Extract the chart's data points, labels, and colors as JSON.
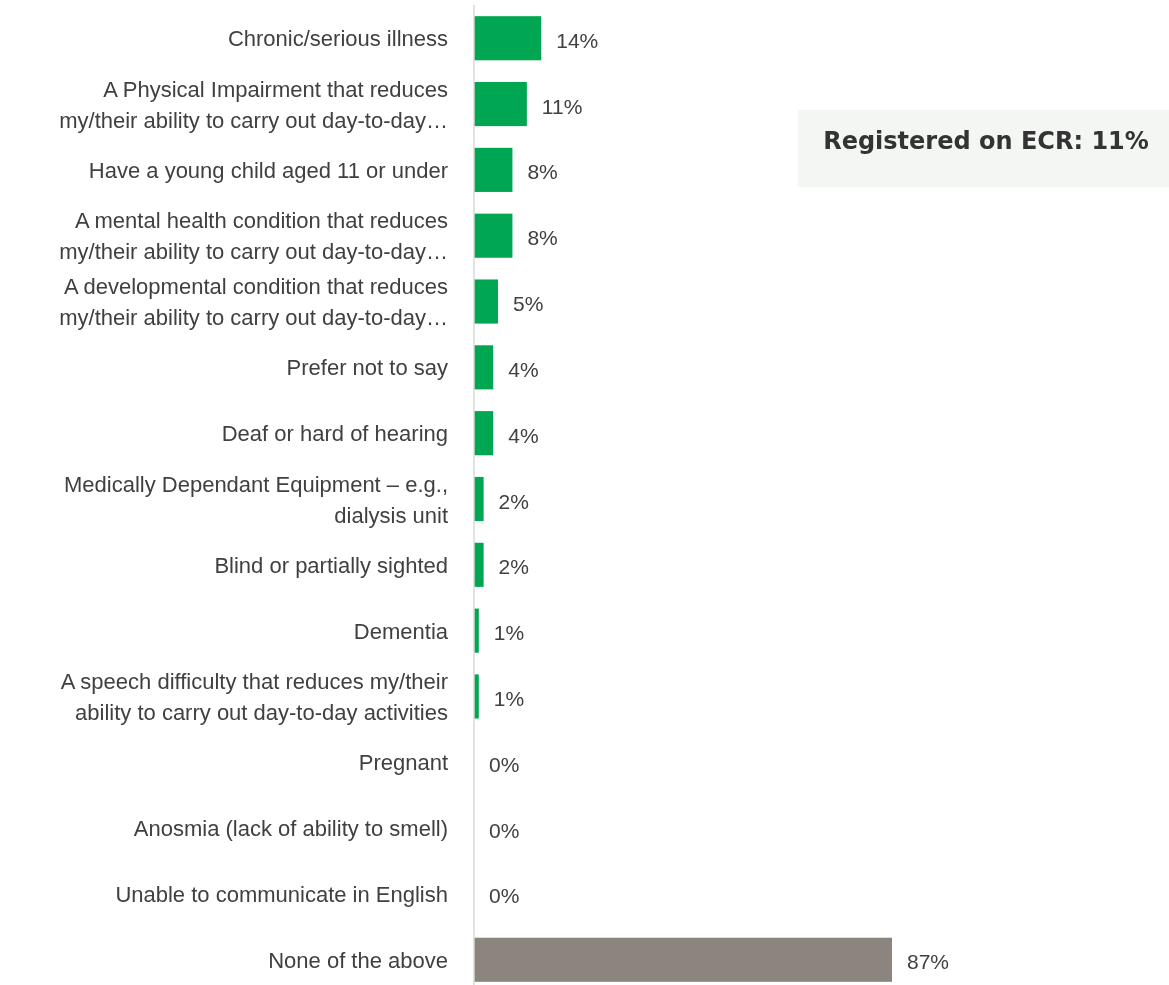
{
  "chart_data": {
    "type": "bar",
    "orientation": "horizontal",
    "categories": [
      "Chronic/serious illness",
      "A Physical Impairment that reduces\nmy/their ability to carry out day-to-day…",
      "Have a young child aged 11 or under",
      "A mental health condition that reduces\nmy/their ability to carry out day-to-day…",
      "A developmental condition that reduces\nmy/their ability to carry out day-to-day…",
      "Prefer not to say",
      "Deaf or hard of hearing",
      "Medically Dependant Equipment – e.g.,\ndialysis unit",
      "Blind or partially sighted",
      "Dementia",
      "A speech difficulty that reduces my/their\nability to carry out day-to-day activities",
      "Pregnant",
      "Anosmia (lack of ability to smell)",
      "Unable to communicate in English",
      "None of the above"
    ],
    "values": [
      14,
      11,
      8,
      8,
      5,
      4,
      4,
      2,
      2,
      1,
      1,
      0,
      0,
      0,
      87
    ],
    "colors": [
      "#00a651",
      "#00a651",
      "#00a651",
      "#00a651",
      "#00a651",
      "#00a651",
      "#00a651",
      "#00a651",
      "#00a651",
      "#00a651",
      "#00a651",
      "#00a651",
      "#00a651",
      "#00a651",
      "#8c857e"
    ],
    "value_labels": [
      "14%",
      "11%",
      "8%",
      "8%",
      "5%",
      "4%",
      "4%",
      "2%",
      "2%",
      "1%",
      "1%",
      "0%",
      "0%",
      "0%",
      "87%"
    ],
    "annotations": [
      "Registered on ECR: 11%"
    ]
  }
}
